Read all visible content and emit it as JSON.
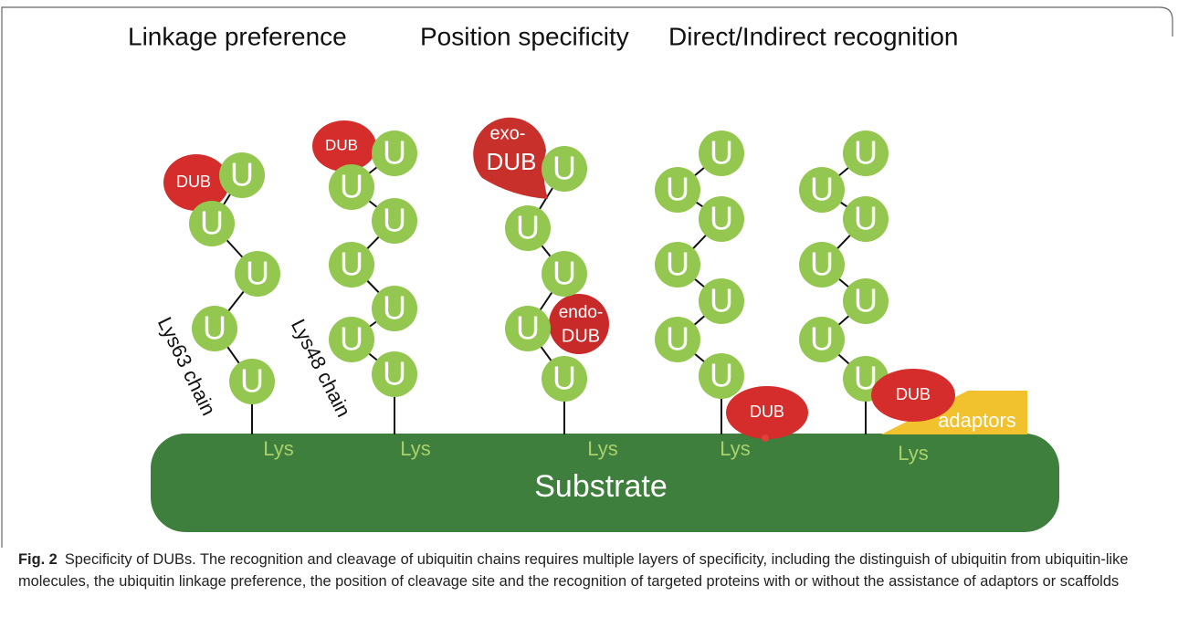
{
  "headers": [
    "Linkage preference",
    "Position specificity",
    "Direct/Indirect recognition"
  ],
  "chains": [
    {
      "label": "Lys63 chain",
      "ubiquitins": [
        "U",
        "U",
        "U",
        "U",
        "U"
      ],
      "dubs": [
        [
          "DUB"
        ]
      ],
      "lys": "Lys"
    },
    {
      "label": "Lys48 chain",
      "ubiquitins": [
        "U",
        "U",
        "U",
        "U",
        "U",
        "U",
        "U"
      ],
      "dubs": [
        [
          "DUB"
        ]
      ],
      "lys": "Lys"
    },
    {
      "ubiquitins": [
        "U",
        "U",
        "U",
        "U",
        "U"
      ],
      "dubs": [
        [
          "exo-",
          "DUB"
        ],
        [
          "endo-",
          "DUB"
        ]
      ],
      "lys": "Lys"
    },
    {
      "ubiquitins": [
        "U",
        "U",
        "U",
        "U",
        "U",
        "U",
        "U"
      ],
      "dubs": [
        [
          "DUB"
        ]
      ],
      "lys": "Lys"
    },
    {
      "ubiquitins": [
        "U",
        "U",
        "U",
        "U",
        "U",
        "U",
        "U"
      ],
      "dubs": [
        [
          "DUB"
        ]
      ],
      "lys": "Lys"
    }
  ],
  "substrate": "Substrate",
  "adaptors": "adaptors",
  "caption": {
    "label": "Fig. 2",
    "text": "Specificity of DUBs. The recognition and cleavage of ubiquitin chains requires multiple layers of specificity, including the distinguish of ubiquitin from ubiquitin-like molecules, the ubiquitin linkage preference, the position of cleavage site and the recognition of targeted proteins with or without the assistance of adaptors or scaffolds"
  }
}
